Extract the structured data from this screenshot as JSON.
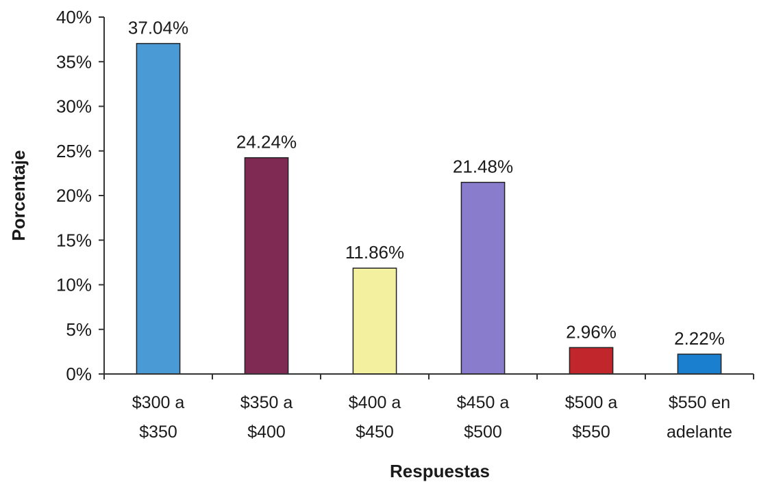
{
  "chart_data": {
    "type": "bar",
    "categories": [
      [
        "$300 a",
        "$350"
      ],
      [
        "$350 a",
        "$400"
      ],
      [
        "$400 a",
        "$450"
      ],
      [
        "$450 a",
        "$500"
      ],
      [
        "$500 a",
        "$550"
      ],
      [
        "$550 en",
        "adelante"
      ]
    ],
    "values": [
      37.04,
      24.24,
      11.86,
      21.48,
      2.96,
      2.22
    ],
    "data_labels": [
      "37.04%",
      "24.24%",
      "11.86%",
      "21.48%",
      "2.96%",
      "2.22%"
    ],
    "colors": [
      "#4a9ad6",
      "#7e2a52",
      "#f3f0a0",
      "#8a7ccc",
      "#c0262c",
      "#1a7fcf"
    ],
    "ylim": [
      0,
      40
    ],
    "yticks": [
      0,
      5,
      10,
      15,
      20,
      25,
      30,
      35,
      40
    ],
    "ytick_labels": [
      "0%",
      "5%",
      "10%",
      "15%",
      "20%",
      "25%",
      "30%",
      "35%",
      "40%"
    ],
    "xlabel": "Respuestas",
    "ylabel": "Porcentaje",
    "grid": false,
    "legend": "none"
  }
}
